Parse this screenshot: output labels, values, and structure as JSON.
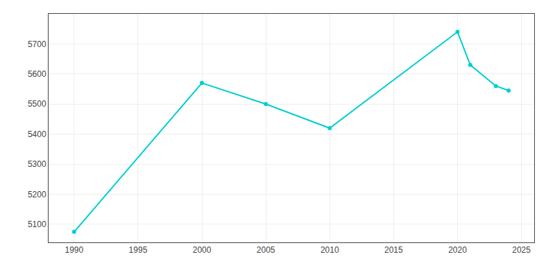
{
  "chart_data": {
    "type": "line",
    "x": [
      1990,
      2000,
      2005,
      2010,
      2020,
      2021,
      2023,
      2024
    ],
    "values": [
      5075,
      5570,
      5500,
      5420,
      5740,
      5630,
      5560,
      5545
    ],
    "color": "#00CED1",
    "marker": "circle",
    "xlim": [
      1988,
      2026
    ],
    "ylim": [
      5040,
      5800
    ],
    "xticks": [
      1990,
      1995,
      2000,
      2005,
      2010,
      2015,
      2020,
      2025
    ],
    "yticks": [
      5100,
      5200,
      5300,
      5400,
      5500,
      5600,
      5700
    ],
    "grid": true
  }
}
